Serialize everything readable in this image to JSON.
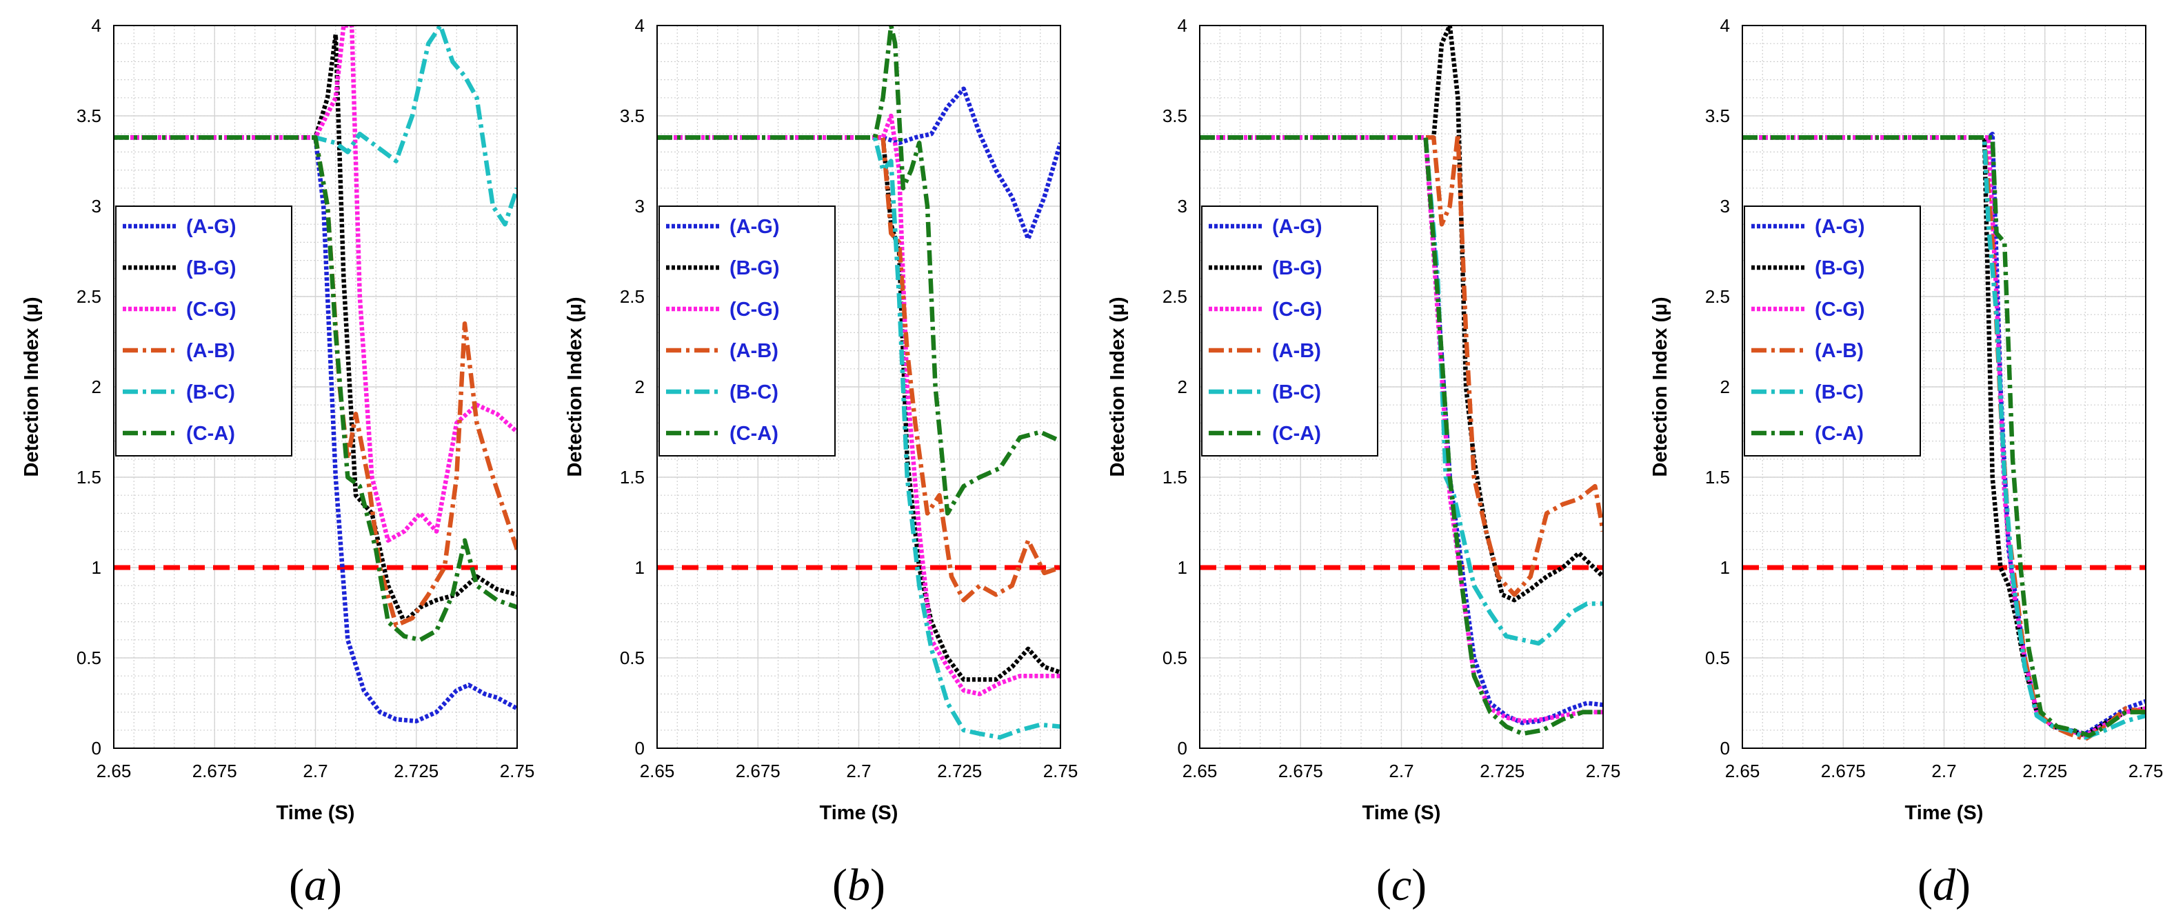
{
  "figure": {
    "threshold": 1,
    "threshold_color": "#ff0000",
    "series_styles": [
      {
        "name": "(A-G)",
        "color": "#1c24d6",
        "dash": "dotted"
      },
      {
        "name": "(B-G)",
        "color": "#000000",
        "dash": "dotted"
      },
      {
        "name": "(C-G)",
        "color": "#ff1fe0",
        "dash": "dotted"
      },
      {
        "name": "(A-B)",
        "color": "#d9541e",
        "dash": "dash-dot"
      },
      {
        "name": "(B-C)",
        "color": "#1fbfc2",
        "dash": "dash-dot"
      },
      {
        "name": "(C-A)",
        "color": "#1a7a1a",
        "dash": "dash-dot"
      }
    ]
  },
  "chart_data": [
    {
      "type": "line",
      "panel_label": "a",
      "xlabel": "Time (S)",
      "ylabel": "Detection Index (μ)",
      "xlim": [
        2.65,
        2.75
      ],
      "ylim": [
        0,
        4
      ],
      "xticks": [
        "2.65",
        "2.675",
        "2.7",
        "2.725",
        "2.75"
      ],
      "yticks": [
        "0",
        "0.5",
        "1",
        "1.5",
        "2",
        "2.5",
        "3",
        "3.5",
        "4"
      ],
      "grid": true,
      "legend": [
        "(A-G)",
        "(B-G)",
        "(C-G)",
        "(A-B)",
        "(B-C)",
        "(C-A)"
      ],
      "series": [
        {
          "name": "(A-G)",
          "x": [
            2.65,
            2.7,
            2.702,
            2.705,
            2.708,
            2.712,
            2.716,
            2.72,
            2.725,
            2.73,
            2.735,
            2.738,
            2.742,
            2.745,
            2.75
          ],
          "y": [
            3.38,
            3.38,
            3.0,
            1.5,
            0.6,
            0.32,
            0.2,
            0.16,
            0.15,
            0.2,
            0.32,
            0.35,
            0.3,
            0.28,
            0.22
          ]
        },
        {
          "name": "(B-G)",
          "x": [
            2.65,
            2.7,
            2.703,
            2.705,
            2.707,
            2.71,
            2.714,
            2.718,
            2.722,
            2.726,
            2.73,
            2.735,
            2.74,
            2.745,
            2.75
          ],
          "y": [
            3.38,
            3.38,
            3.6,
            3.95,
            2.6,
            1.4,
            1.3,
            0.9,
            0.7,
            0.78,
            0.82,
            0.85,
            0.95,
            0.88,
            0.85
          ]
        },
        {
          "name": "(C-G)",
          "x": [
            2.65,
            2.7,
            2.705,
            2.707,
            2.708,
            2.709,
            2.711,
            2.714,
            2.718,
            2.722,
            2.726,
            2.73,
            2.735,
            2.74,
            2.745,
            2.75
          ],
          "y": [
            3.38,
            3.38,
            3.6,
            4.0,
            4.0,
            4.0,
            2.5,
            1.5,
            1.15,
            1.2,
            1.3,
            1.2,
            1.8,
            1.9,
            1.85,
            1.75
          ]
        },
        {
          "name": "(A-B)",
          "x": [
            2.65,
            2.7,
            2.703,
            2.706,
            2.708,
            2.71,
            2.713,
            2.716,
            2.72,
            2.724,
            2.728,
            2.732,
            2.735,
            2.737,
            2.74,
            2.744,
            2.75
          ],
          "y": [
            3.38,
            3.38,
            3.0,
            2.0,
            1.6,
            1.85,
            1.5,
            1.0,
            0.68,
            0.72,
            0.85,
            1.0,
            1.5,
            2.35,
            1.8,
            1.5,
            1.1
          ]
        },
        {
          "name": "(B-C)",
          "x": [
            2.65,
            2.7,
            2.705,
            2.708,
            2.711,
            2.714,
            2.717,
            2.72,
            2.724,
            2.728,
            2.731,
            2.734,
            2.737,
            2.74,
            2.744,
            2.747,
            2.75
          ],
          "y": [
            3.38,
            3.38,
            3.35,
            3.3,
            3.4,
            3.35,
            3.3,
            3.25,
            3.5,
            3.9,
            4.0,
            3.8,
            3.72,
            3.6,
            3.0,
            2.9,
            3.1
          ]
        },
        {
          "name": "(C-A)",
          "x": [
            2.65,
            2.7,
            2.703,
            2.705,
            2.708,
            2.711,
            2.715,
            2.718,
            2.722,
            2.726,
            2.73,
            2.734,
            2.737,
            2.74,
            2.745,
            2.75
          ],
          "y": [
            3.38,
            3.38,
            3.0,
            2.3,
            1.5,
            1.45,
            1.1,
            0.7,
            0.62,
            0.6,
            0.65,
            0.85,
            1.15,
            0.9,
            0.82,
            0.78
          ]
        }
      ]
    },
    {
      "type": "line",
      "panel_label": "b",
      "xlabel": "Time (S)",
      "ylabel": "Detection Index (μ)",
      "xlim": [
        2.65,
        2.75
      ],
      "ylim": [
        0,
        4
      ],
      "xticks": [
        "2.65",
        "2.675",
        "2.7",
        "2.725",
        "2.75"
      ],
      "yticks": [
        "0",
        "0.5",
        "1",
        "1.5",
        "2",
        "2.5",
        "3",
        "3.5",
        "4"
      ],
      "grid": true,
      "legend": [
        "(A-G)",
        "(B-G)",
        "(C-G)",
        "(A-B)",
        "(B-C)",
        "(C-A)"
      ],
      "series": [
        {
          "name": "(A-G)",
          "x": [
            2.65,
            2.706,
            2.71,
            2.714,
            2.718,
            2.722,
            2.726,
            2.73,
            2.734,
            2.738,
            2.742,
            2.746,
            2.75
          ],
          "y": [
            3.38,
            3.38,
            3.35,
            3.38,
            3.4,
            3.55,
            3.65,
            3.4,
            3.2,
            3.05,
            2.82,
            3.05,
            3.35
          ]
        },
        {
          "name": "(B-G)",
          "x": [
            2.65,
            2.706,
            2.708,
            2.71,
            2.712,
            2.715,
            2.718,
            2.722,
            2.726,
            2.73,
            2.734,
            2.738,
            2.742,
            2.746,
            2.75
          ],
          "y": [
            3.38,
            3.38,
            2.9,
            2.75,
            1.6,
            1.0,
            0.7,
            0.5,
            0.38,
            0.38,
            0.38,
            0.45,
            0.55,
            0.45,
            0.42
          ]
        },
        {
          "name": "(C-G)",
          "x": [
            2.65,
            2.706,
            2.708,
            2.71,
            2.712,
            2.715,
            2.718,
            2.722,
            2.726,
            2.73,
            2.735,
            2.74,
            2.745,
            2.75
          ],
          "y": [
            3.38,
            3.38,
            3.5,
            3.2,
            2.0,
            1.2,
            0.6,
            0.45,
            0.32,
            0.3,
            0.36,
            0.4,
            0.4,
            0.4
          ]
        },
        {
          "name": "(A-B)",
          "x": [
            2.65,
            2.706,
            2.708,
            2.71,
            2.712,
            2.714,
            2.717,
            2.72,
            2.723,
            2.726,
            2.73,
            2.734,
            2.738,
            2.742,
            2.746,
            2.75
          ],
          "y": [
            3.38,
            3.38,
            2.85,
            2.8,
            2.2,
            1.8,
            1.3,
            1.4,
            0.95,
            0.82,
            0.9,
            0.85,
            0.9,
            1.15,
            0.97,
            1.0
          ]
        },
        {
          "name": "(B-C)",
          "x": [
            2.65,
            2.704,
            2.706,
            2.708,
            2.71,
            2.712,
            2.715,
            2.718,
            2.722,
            2.726,
            2.73,
            2.735,
            2.74,
            2.745,
            2.75
          ],
          "y": [
            3.38,
            3.38,
            3.2,
            3.25,
            2.5,
            1.5,
            0.9,
            0.55,
            0.25,
            0.1,
            0.08,
            0.06,
            0.1,
            0.13,
            0.12
          ]
        },
        {
          "name": "(C-A)",
          "x": [
            2.65,
            2.704,
            2.706,
            2.708,
            2.709,
            2.711,
            2.713,
            2.715,
            2.717,
            2.719,
            2.722,
            2.726,
            2.73,
            2.735,
            2.74,
            2.745,
            2.75
          ],
          "y": [
            3.38,
            3.38,
            3.6,
            4.0,
            3.9,
            3.1,
            3.2,
            3.35,
            3.0,
            2.0,
            1.3,
            1.45,
            1.5,
            1.55,
            1.72,
            1.75,
            1.7
          ]
        }
      ]
    },
    {
      "type": "line",
      "panel_label": "c",
      "xlabel": "Time (S)",
      "ylabel": "Detection Index (μ)",
      "xlim": [
        2.65,
        2.75
      ],
      "ylim": [
        0,
        4
      ],
      "xticks": [
        "2.65",
        "2.675",
        "2.7",
        "2.725",
        "2.75"
      ],
      "yticks": [
        "0",
        "0.5",
        "1",
        "1.5",
        "2",
        "2.5",
        "3",
        "3.5",
        "4"
      ],
      "grid": true,
      "legend": [
        "(A-G)",
        "(B-G)",
        "(C-G)",
        "(A-B)",
        "(B-C)",
        "(C-A)"
      ],
      "series": [
        {
          "name": "(A-G)",
          "x": [
            2.65,
            2.706,
            2.709,
            2.712,
            2.715,
            2.718,
            2.722,
            2.726,
            2.73,
            2.734,
            2.738,
            2.742,
            2.746,
            2.75
          ],
          "y": [
            3.38,
            3.38,
            2.5,
            1.5,
            1.0,
            0.5,
            0.25,
            0.18,
            0.14,
            0.15,
            0.18,
            0.22,
            0.25,
            0.24
          ]
        },
        {
          "name": "(B-G)",
          "x": [
            2.65,
            2.708,
            2.71,
            2.712,
            2.714,
            2.716,
            2.718,
            2.721,
            2.725,
            2.728,
            2.732,
            2.736,
            2.74,
            2.744,
            2.75
          ],
          "y": [
            3.38,
            3.38,
            3.9,
            4.0,
            3.6,
            2.0,
            1.6,
            1.2,
            0.85,
            0.82,
            0.88,
            0.95,
            1.0,
            1.08,
            0.95
          ]
        },
        {
          "name": "(C-G)",
          "x": [
            2.65,
            2.706,
            2.709,
            2.712,
            2.715,
            2.718,
            2.722,
            2.726,
            2.73,
            2.735,
            2.74,
            2.745,
            2.75
          ],
          "y": [
            3.38,
            3.38,
            2.4,
            1.4,
            0.9,
            0.4,
            0.22,
            0.17,
            0.15,
            0.16,
            0.18,
            0.2,
            0.2
          ]
        },
        {
          "name": "(A-B)",
          "x": [
            2.65,
            2.708,
            2.71,
            2.712,
            2.714,
            2.716,
            2.718,
            2.721,
            2.724,
            2.728,
            2.732,
            2.736,
            2.74,
            2.744,
            2.748,
            2.75
          ],
          "y": [
            3.38,
            3.38,
            2.9,
            3.0,
            3.4,
            2.3,
            1.5,
            1.2,
            0.95,
            0.85,
            0.95,
            1.3,
            1.35,
            1.38,
            1.45,
            1.2
          ]
        },
        {
          "name": "(B-C)",
          "x": [
            2.65,
            2.706,
            2.709,
            2.711,
            2.713,
            2.715,
            2.718,
            2.722,
            2.726,
            2.73,
            2.734,
            2.738,
            2.742,
            2.746,
            2.75
          ],
          "y": [
            3.38,
            3.38,
            2.6,
            1.5,
            1.4,
            1.2,
            0.9,
            0.75,
            0.62,
            0.6,
            0.58,
            0.65,
            0.75,
            0.8,
            0.8
          ]
        },
        {
          "name": "(C-A)",
          "x": [
            2.65,
            2.706,
            2.709,
            2.712,
            2.715,
            2.718,
            2.722,
            2.726,
            2.73,
            2.735,
            2.74,
            2.745,
            2.75
          ],
          "y": [
            3.38,
            3.38,
            2.5,
            1.5,
            0.9,
            0.4,
            0.2,
            0.12,
            0.08,
            0.1,
            0.16,
            0.2,
            0.2
          ]
        }
      ]
    },
    {
      "type": "line",
      "panel_label": "d",
      "xlabel": "Time (S)",
      "ylabel": "Detection Index (μ)",
      "xlim": [
        2.65,
        2.75
      ],
      "ylim": [
        0,
        4
      ],
      "xticks": [
        "2.65",
        "2.675",
        "2.7",
        "2.725",
        "2.75"
      ],
      "yticks": [
        "0",
        "0.5",
        "1",
        "1.5",
        "2",
        "2.5",
        "3",
        "3.5",
        "4"
      ],
      "grid": true,
      "legend": [
        "(A-G)",
        "(B-G)",
        "(C-G)",
        "(A-B)",
        "(B-C)",
        "(C-A)"
      ],
      "series": [
        {
          "name": "(A-G)",
          "x": [
            2.65,
            2.711,
            2.712,
            2.714,
            2.716,
            2.718,
            2.72,
            2.723,
            2.727,
            2.731,
            2.735,
            2.74,
            2.745,
            2.75
          ],
          "y": [
            3.38,
            3.38,
            3.4,
            2.0,
            1.1,
            0.8,
            0.5,
            0.2,
            0.12,
            0.1,
            0.08,
            0.15,
            0.22,
            0.26
          ]
        },
        {
          "name": "(B-G)",
          "x": [
            2.65,
            2.71,
            2.712,
            2.714,
            2.716,
            2.718,
            2.72,
            2.723,
            2.727,
            2.731,
            2.735,
            2.74,
            2.745,
            2.75
          ],
          "y": [
            3.38,
            3.38,
            1.5,
            1.0,
            0.9,
            0.7,
            0.45,
            0.2,
            0.12,
            0.1,
            0.07,
            0.14,
            0.2,
            0.22
          ]
        },
        {
          "name": "(C-G)",
          "x": [
            2.65,
            2.711,
            2.713,
            2.715,
            2.717,
            2.72,
            2.723,
            2.727,
            2.731,
            2.735,
            2.74,
            2.745,
            2.75
          ],
          "y": [
            3.38,
            3.38,
            2.5,
            1.4,
            0.9,
            0.5,
            0.2,
            0.12,
            0.1,
            0.07,
            0.13,
            0.2,
            0.22
          ]
        },
        {
          "name": "(A-B)",
          "x": [
            2.65,
            2.71,
            2.712,
            2.714,
            2.716,
            2.718,
            2.72,
            2.723,
            2.727,
            2.731,
            2.735,
            2.74,
            2.745,
            2.75
          ],
          "y": [
            3.38,
            3.38,
            2.8,
            1.9,
            1.2,
            0.85,
            0.5,
            0.2,
            0.12,
            0.08,
            0.05,
            0.12,
            0.22,
            0.2
          ]
        },
        {
          "name": "(B-C)",
          "x": [
            2.65,
            2.71,
            2.711,
            2.713,
            2.715,
            2.717,
            2.72,
            2.723,
            2.727,
            2.731,
            2.735,
            2.74,
            2.745,
            2.75
          ],
          "y": [
            3.38,
            3.38,
            2.9,
            2.4,
            1.5,
            0.95,
            0.45,
            0.18,
            0.12,
            0.1,
            0.06,
            0.1,
            0.15,
            0.18
          ]
        },
        {
          "name": "(C-A)",
          "x": [
            2.65,
            2.712,
            2.713,
            2.715,
            2.717,
            2.719,
            2.721,
            2.724,
            2.728,
            2.732,
            2.736,
            2.74,
            2.745,
            2.75
          ],
          "y": [
            3.38,
            3.38,
            2.85,
            2.8,
            1.6,
            1.0,
            0.55,
            0.2,
            0.12,
            0.1,
            0.07,
            0.12,
            0.2,
            0.2
          ]
        }
      ]
    }
  ]
}
